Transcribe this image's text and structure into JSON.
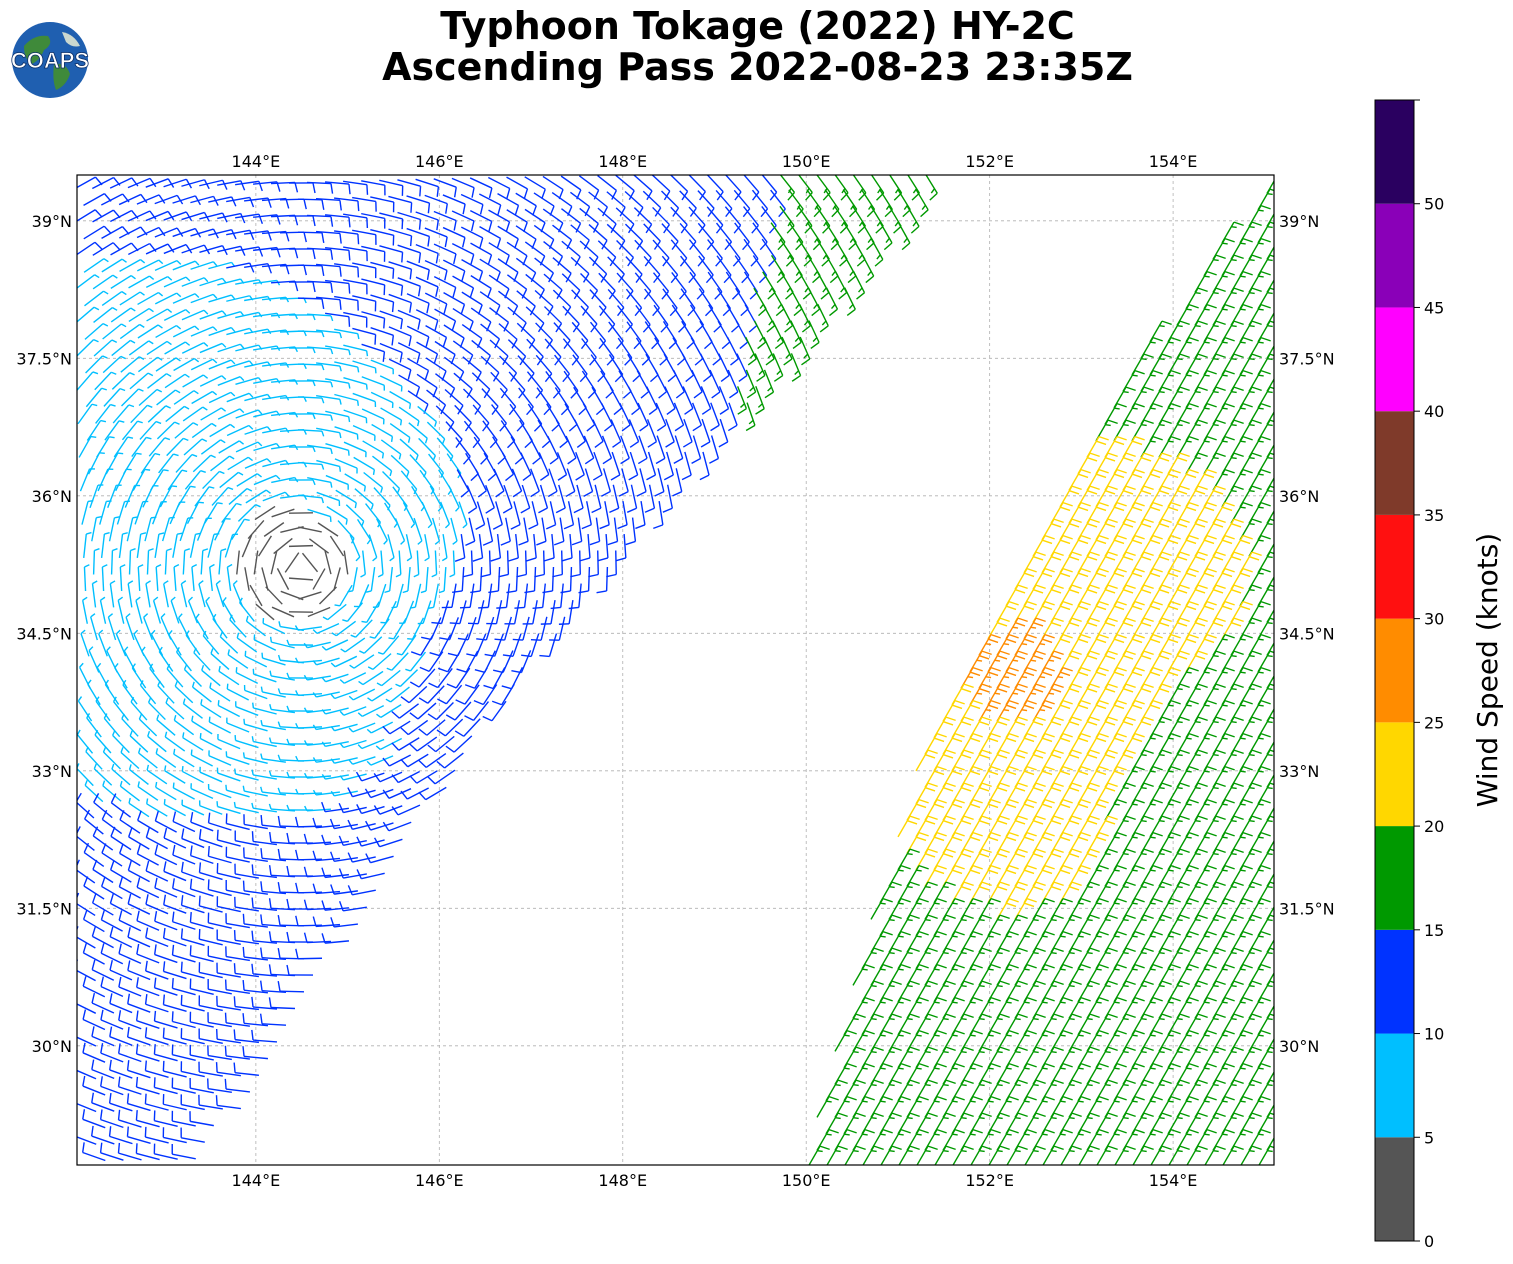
{
  "title": {
    "line1": "Typhoon Tokage (2022) HY-2C",
    "line2": "Ascending Pass 2022-08-23 23:35Z"
  },
  "logo": {
    "text": "COAPS",
    "icon": "earth-globe-logo"
  },
  "map": {
    "lon_range": [
      142.05,
      155.1
    ],
    "lat_range": [
      28.7,
      39.5
    ],
    "lon_ticks": [
      "144°E",
      "146°E",
      "148°E",
      "150°E",
      "152°E",
      "154°E"
    ],
    "lon_tick_values": [
      144,
      146,
      148,
      150,
      152,
      154
    ],
    "lat_ticks": [
      "30°N",
      "31.5°N",
      "33°N",
      "34.5°N",
      "36°N",
      "37.5°N",
      "39°N"
    ],
    "lat_tick_values": [
      30,
      31.5,
      33,
      34.5,
      36,
      37.5,
      39
    ],
    "gridlines": true,
    "barb_units": "knots",
    "swaths": [
      {
        "name": "west swath",
        "edge_points_lonlat": [
          [
            142.05,
            28.7
          ],
          [
            143.3,
            28.7
          ],
          [
            146.0,
            32.8
          ],
          [
            148.0,
            35.3
          ],
          [
            149.2,
            36.6
          ],
          [
            151.6,
            39.5
          ],
          [
            142.05,
            39.5
          ]
        ]
      },
      {
        "name": "east swath",
        "edge_points_lonlat": [
          [
            150.0,
            28.7
          ],
          [
            155.1,
            28.7
          ],
          [
            155.1,
            39.5
          ],
          [
            154.5,
            38.8
          ],
          [
            153.3,
            37.1
          ],
          [
            152.3,
            35.3
          ],
          [
            151.2,
            33.0
          ],
          [
            150.1,
            29.2
          ]
        ]
      }
    ],
    "wind_regions": [
      {
        "region": "low-wind center west of 145E",
        "center_lonlat": [
          144.5,
          35.2
        ],
        "speed_knots": 3
      },
      {
        "region": "cyclonic eddy",
        "center_lonlat": [
          146.8,
          34.3
        ],
        "speed_knots": 12
      },
      {
        "region": "southwest swath",
        "center_lonlat": [
          143.0,
          30.5
        ],
        "speed_knots": 11
      },
      {
        "region": "northern swath",
        "center_lonlat": [
          148.5,
          38.5
        ],
        "speed_knots": 15
      },
      {
        "region": "eastern swath core",
        "center_lonlat": [
          152.3,
          34.0
        ],
        "speed_knots": 27
      },
      {
        "region": "eastern swath outer",
        "center_lonlat": [
          154.2,
          33.0
        ],
        "speed_knots": 18
      }
    ]
  },
  "colorbar": {
    "label": "Wind Speed (knots)",
    "bounds": [
      0,
      5,
      10,
      15,
      20,
      25,
      30,
      35,
      40,
      45,
      50,
      55
    ],
    "tick_labels": [
      "0",
      "5",
      "10",
      "15",
      "20",
      "25",
      "30",
      "35",
      "40",
      "45",
      "50"
    ],
    "colors": [
      "#555555",
      "#00bfff",
      "#0033ff",
      "#009900",
      "#ffd700",
      "#ff8c00",
      "#ff1010",
      "#7f3a2a",
      "#ff00ff",
      "#8a00b8",
      "#2a0060"
    ]
  }
}
